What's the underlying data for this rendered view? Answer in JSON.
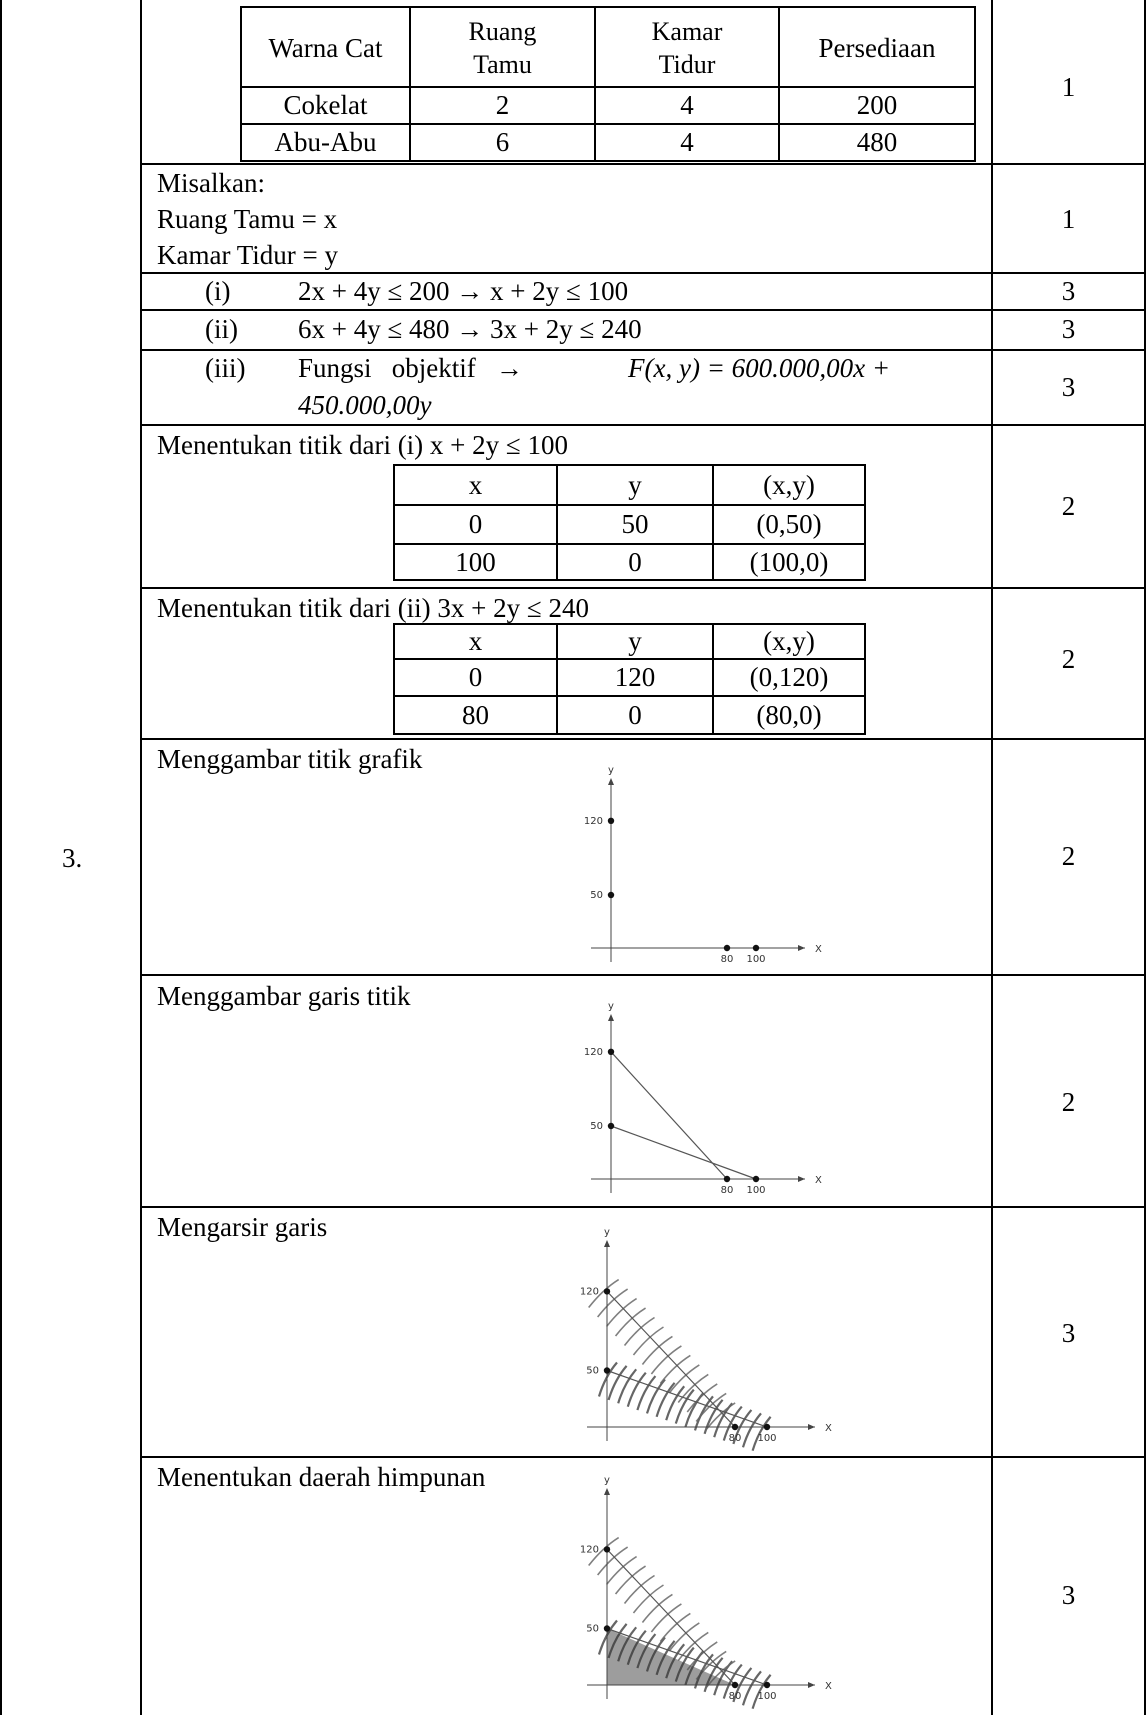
{
  "row_number": "3.",
  "paint_table": {
    "headers": [
      "Warna Cat",
      "Ruang\nTamu",
      "Kamar\nTidur",
      "Persediaan"
    ],
    "header_lines": [
      [
        "Warna Cat"
      ],
      [
        "Ruang",
        "Tamu"
      ],
      [
        "Kamar",
        "Tidur"
      ],
      [
        "Persediaan"
      ]
    ],
    "rows": [
      [
        "Cokelat",
        "2",
        "4",
        "200"
      ],
      [
        "Abu-Abu",
        "6",
        "4",
        "480"
      ]
    ]
  },
  "scores": [
    "1",
    "1",
    "3",
    "3",
    "3",
    "2",
    "2",
    "2",
    "2",
    "3",
    "3"
  ],
  "let": {
    "title": "Misalkan:",
    "lines": [
      "Ruang Tamu = x",
      "Kamar Tidur = y"
    ]
  },
  "inequalities": [
    {
      "label": "(i)",
      "text": "2x + 4y ≤ 200 → x + 2y ≤ 100"
    },
    {
      "label": "(ii)",
      "text": "6x + 4y ≤ 480 → 3x + 2y ≤ 240"
    }
  ],
  "objective": {
    "label": "(iii)",
    "words": "Fungsi   objektif   →",
    "formula_line1": "F(x, y) = 600.000,00x +",
    "formula_line2": "450.000,00y"
  },
  "points_i": {
    "title": "Menentukan titik dari (i) x + 2y ≤ 100",
    "headers": [
      "x",
      "y",
      "(x,y)"
    ],
    "rows": [
      [
        "0",
        "50",
        "(0,50)"
      ],
      [
        "100",
        "0",
        "(100,0)"
      ]
    ]
  },
  "points_ii": {
    "title": "Menentukan titik dari (ii) 3x + 2y ≤ 240",
    "headers": [
      "x",
      "y",
      "(x,y)"
    ],
    "rows": [
      [
        "0",
        "120",
        "(0,120)"
      ],
      [
        "80",
        "0",
        "(80,0)"
      ]
    ]
  },
  "steps": {
    "plot_points": "Menggambar titik grafik",
    "draw_lines": "Menggambar garis titik",
    "shade": "Mengarsir garis",
    "region": "Menentukan daerah himpunan"
  },
  "chart_data": [
    {
      "type": "scatter",
      "title": "",
      "xlabel": "x",
      "ylabel": "y",
      "y_ticks": [
        "120",
        "50"
      ],
      "x_ticks": [
        "80",
        "100"
      ],
      "points": [
        [
          0,
          120
        ],
        [
          0,
          50
        ],
        [
          80,
          0
        ],
        [
          100,
          0
        ]
      ],
      "lines": []
    },
    {
      "type": "line",
      "title": "",
      "xlabel": "x",
      "ylabel": "y",
      "y_ticks": [
        "120",
        "50"
      ],
      "x_ticks": [
        "80",
        "100"
      ],
      "points": [
        [
          0,
          120
        ],
        [
          0,
          50
        ],
        [
          80,
          0
        ],
        [
          100,
          0
        ]
      ],
      "lines": [
        [
          [
            0,
            120
          ],
          [
            80,
            0
          ]
        ],
        [
          [
            0,
            50
          ],
          [
            100,
            0
          ]
        ]
      ]
    },
    {
      "type": "area",
      "title": "",
      "xlabel": "x",
      "ylabel": "y",
      "y_ticks": [
        "120",
        "50"
      ],
      "x_ticks": [
        "80",
        "100"
      ],
      "points": [
        [
          0,
          120
        ],
        [
          0,
          50
        ],
        [
          80,
          0
        ],
        [
          100,
          0
        ]
      ],
      "lines": [
        [
          [
            0,
            120
          ],
          [
            80,
            0
          ]
        ],
        [
          [
            0,
            50
          ],
          [
            100,
            0
          ]
        ]
      ],
      "shading": "hatched"
    },
    {
      "type": "area",
      "title": "",
      "xlabel": "x",
      "ylabel": "y",
      "y_ticks": [
        "120",
        "50"
      ],
      "x_ticks": [
        "80",
        "100"
      ],
      "points": [
        [
          0,
          120
        ],
        [
          0,
          50
        ],
        [
          80,
          0
        ],
        [
          100,
          0
        ]
      ],
      "lines": [
        [
          [
            0,
            120
          ],
          [
            80,
            0
          ]
        ],
        [
          [
            0,
            50
          ],
          [
            100,
            0
          ]
        ]
      ],
      "shading": "hatched",
      "feasible_region": [
        [
          0,
          0
        ],
        [
          0,
          50
        ],
        [
          80,
          0
        ]
      ]
    }
  ]
}
